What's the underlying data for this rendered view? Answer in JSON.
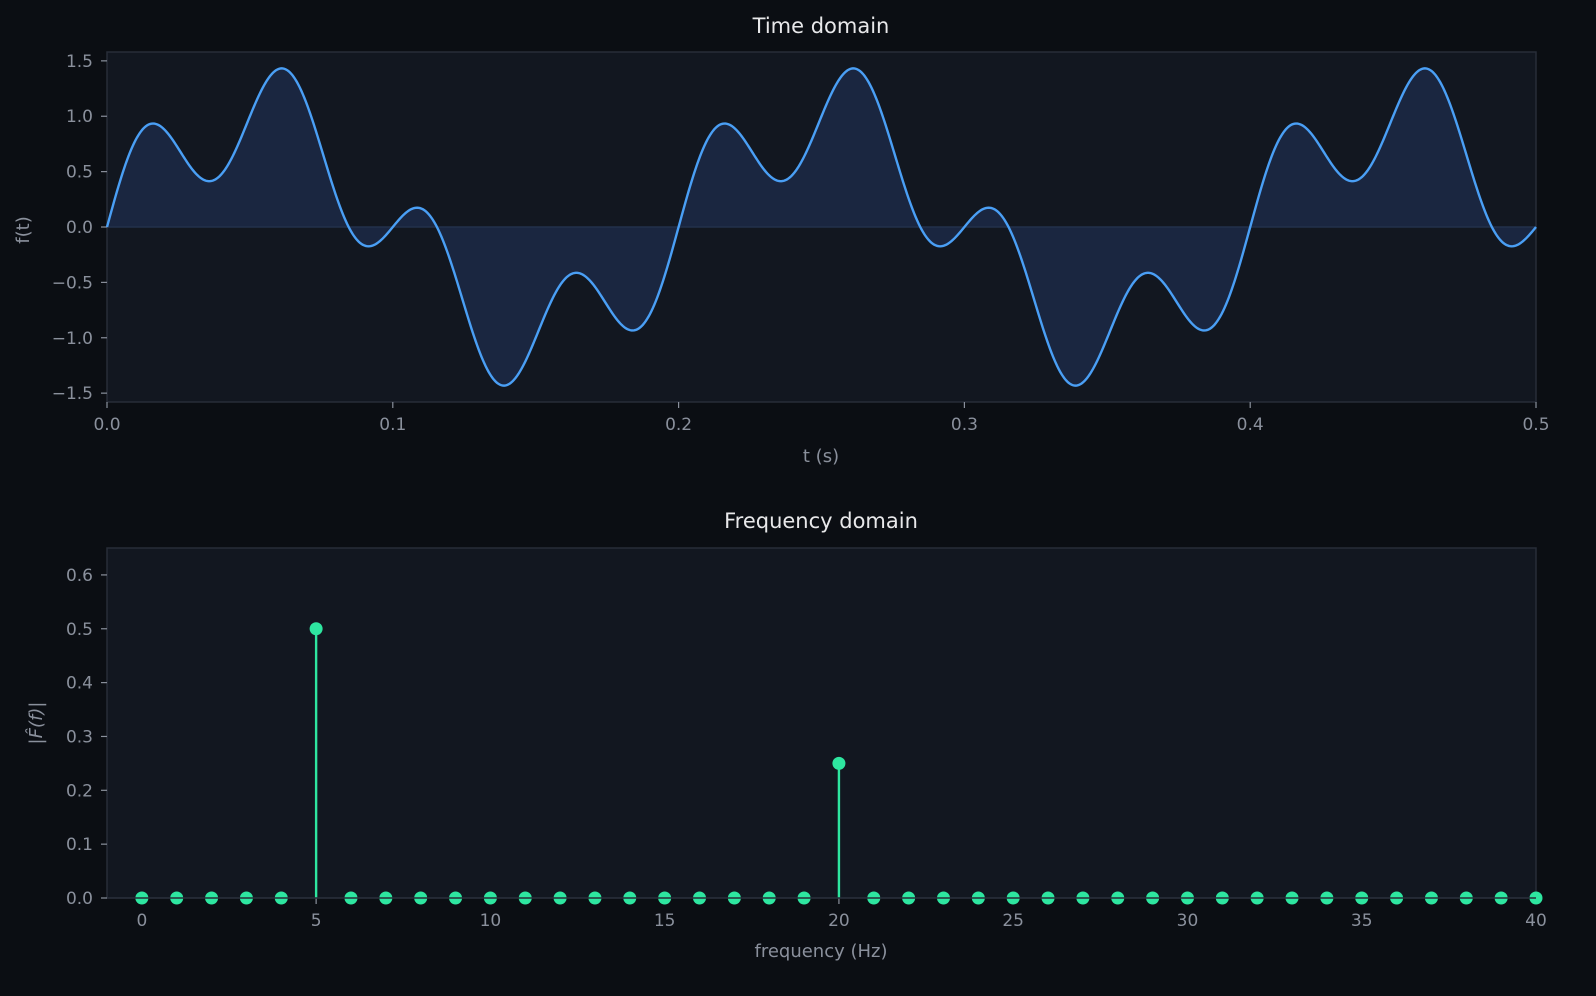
{
  "colors": {
    "background": "#0b0e13",
    "axes_face": "#121720",
    "spine": "#272d38",
    "line": "#4a9ff5",
    "fill": "#1a2640",
    "stem": "#2ee6a0",
    "text": "#8a909c",
    "title": "#e8e8ea"
  },
  "chart_data": [
    {
      "type": "line",
      "title": "Time domain",
      "xlabel": "t  (s)",
      "ylabel": "f(t)",
      "xlim": [
        0,
        0.5
      ],
      "ylim": [
        -1.58,
        1.58
      ],
      "xticks": [
        "0.0",
        "0.1",
        "0.2",
        "0.3",
        "0.4",
        "0.5"
      ],
      "xtick_values": [
        0,
        0.1,
        0.2,
        0.3,
        0.4,
        0.5
      ],
      "yticks": [
        "1.5",
        "1.0",
        "0.5",
        "0.0",
        "−0.5",
        "−1.0",
        "−1.5"
      ],
      "ytick_values": [
        1.5,
        1.0,
        0.5,
        0.0,
        -0.5,
        -1.0,
        -1.5
      ],
      "signal_components": [
        {
          "frequency_hz": 5,
          "amplitude": 1.0
        },
        {
          "frequency_hz": 20,
          "amplitude": 0.5
        }
      ],
      "filled_to_zero": true,
      "grid": false
    },
    {
      "type": "stem",
      "title": "Frequency domain",
      "xlabel": "frequency  (Hz)",
      "ylabel": "|F̂(f)|",
      "xlim": [
        -1,
        40
      ],
      "ylim": [
        0,
        0.65
      ],
      "xticks": [
        "0",
        "5",
        "10",
        "15",
        "20",
        "25",
        "30",
        "35",
        "40"
      ],
      "xtick_values": [
        0,
        5,
        10,
        15,
        20,
        25,
        30,
        35,
        40
      ],
      "yticks": [
        "0.6",
        "0.5",
        "0.4",
        "0.3",
        "0.2",
        "0.1",
        "0.0"
      ],
      "ytick_values": [
        0.6,
        0.5,
        0.4,
        0.3,
        0.2,
        0.1,
        0.0
      ],
      "x": [
        0,
        1,
        2,
        3,
        4,
        5,
        6,
        7,
        8,
        9,
        10,
        11,
        12,
        13,
        14,
        15,
        16,
        17,
        18,
        19,
        20,
        21,
        22,
        23,
        24,
        25,
        26,
        27,
        28,
        29,
        30,
        31,
        32,
        33,
        34,
        35,
        36,
        37,
        38,
        39,
        40
      ],
      "values": [
        0,
        0,
        0,
        0,
        0,
        0.5,
        0,
        0,
        0,
        0,
        0,
        0,
        0,
        0,
        0,
        0,
        0,
        0,
        0,
        0,
        0.25,
        0,
        0,
        0,
        0,
        0,
        0,
        0,
        0,
        0,
        0,
        0,
        0,
        0,
        0,
        0,
        0,
        0,
        0,
        0,
        0
      ],
      "grid": false
    }
  ]
}
